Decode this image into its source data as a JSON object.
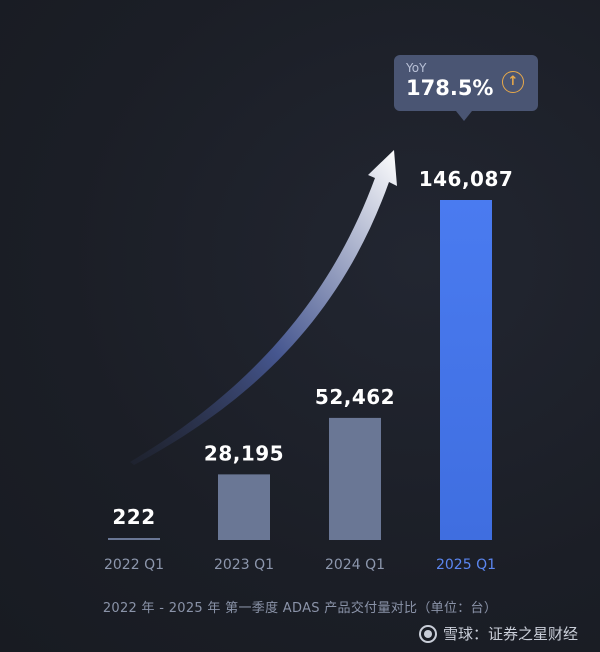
{
  "chart_data": {
    "type": "bar",
    "categories": [
      "2022 Q1",
      "2023 Q1",
      "2024 Q1",
      "2025 Q1"
    ],
    "values": [
      222,
      28195,
      52462,
      146087
    ],
    "value_labels": [
      "222",
      "28,195",
      "52,462",
      "146,087"
    ],
    "title": "",
    "xlabel": "",
    "ylabel": "",
    "ylim": [
      0,
      146087
    ],
    "grid": false,
    "legend": "none",
    "caption": "2022 年 - 2025 年 第一季度 ADAS 产品交付量对比（单位：台）",
    "annotation": {
      "label": "YoY",
      "value": "178.5%",
      "direction": "up"
    },
    "colors": {
      "bar_default": "#6a7795",
      "bar_highlight": "#4473e6",
      "tick_default": "#8d97ad",
      "tick_highlight": "#5b86f0",
      "arrow_icon": "#e8a94a"
    }
  },
  "watermark": {
    "text": "雪球：证券之星财经"
  }
}
